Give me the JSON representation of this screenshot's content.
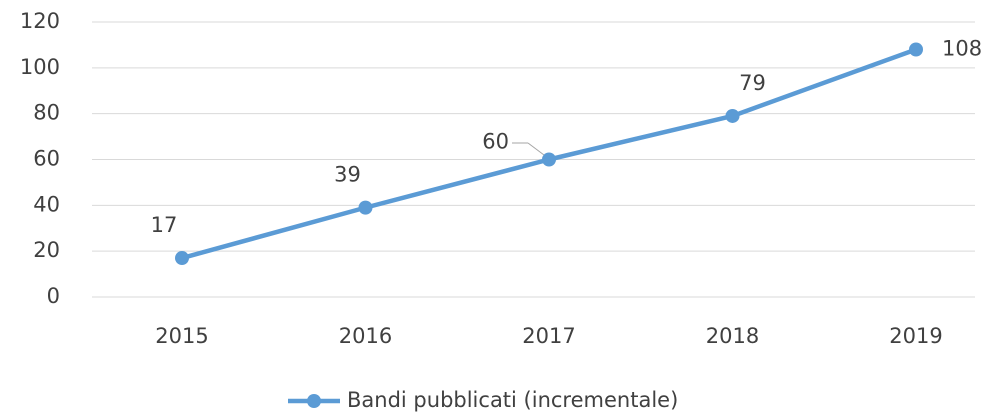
{
  "chart_data": {
    "type": "line",
    "categories": [
      "2015",
      "2016",
      "2017",
      "2018",
      "2019"
    ],
    "series": [
      {
        "name": "Bandi pubblicati (incrementale)",
        "color": "#5b9bd5",
        "values": [
          17,
          39,
          60,
          79,
          108
        ]
      }
    ],
    "ylim": [
      0,
      120
    ],
    "yticks": [
      0,
      20,
      40,
      60,
      80,
      100,
      120
    ],
    "grid": true,
    "legend": "bottom"
  }
}
